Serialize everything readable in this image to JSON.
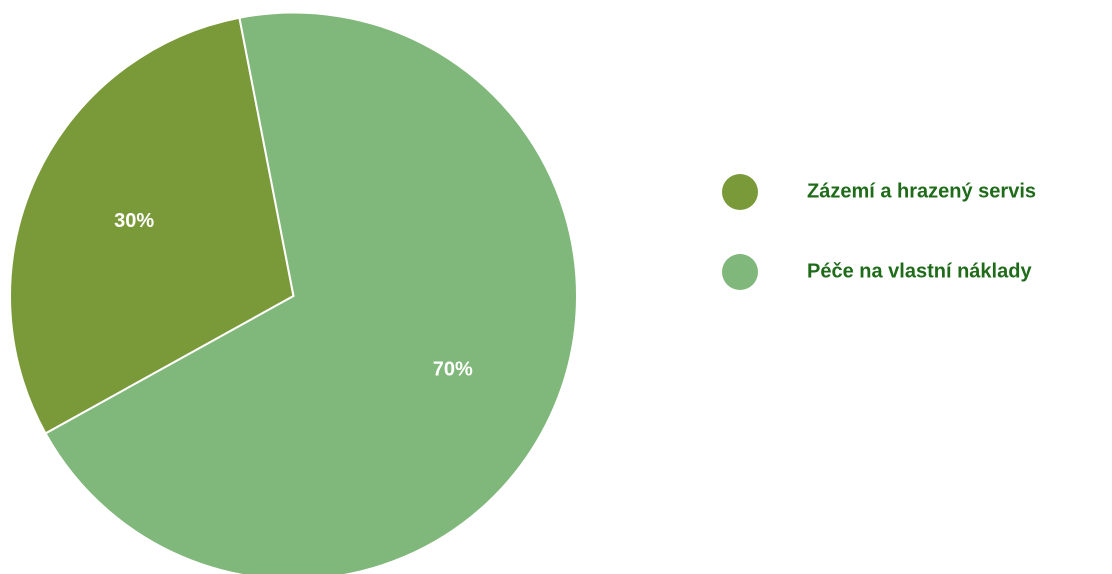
{
  "chart_data": {
    "type": "pie",
    "categories": [
      "Zázemí a hrazený servis",
      "Péče na vlastní náklady"
    ],
    "values": [
      30,
      70
    ],
    "value_labels": [
      "30%",
      "70%"
    ],
    "colors": [
      "#7a9a3a",
      "#80b77a"
    ],
    "legend": "right"
  }
}
